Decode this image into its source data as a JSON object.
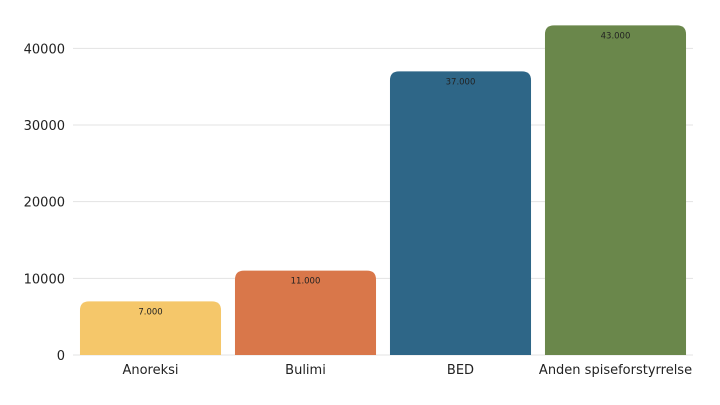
{
  "chart_data": {
    "type": "bar",
    "categories": [
      "Anoreksi",
      "Bulimi",
      "BED",
      "Anden spiseforstyrrelse"
    ],
    "values": [
      7000,
      11000,
      37000,
      43000
    ],
    "data_labels": [
      "7.000",
      "11.000",
      "37.000",
      "43.000"
    ],
    "colors": [
      "#F5C76A",
      "#D9774A",
      "#2E6687",
      "#6A874B"
    ],
    "title": "",
    "xlabel": "",
    "ylabel": "",
    "ylim": [
      0,
      45000
    ],
    "yticks": [
      0,
      10000,
      20000,
      30000,
      40000
    ],
    "ytick_labels": [
      "0",
      "10000",
      "20000",
      "30000",
      "40000"
    ],
    "grid": true,
    "legend": "none"
  }
}
